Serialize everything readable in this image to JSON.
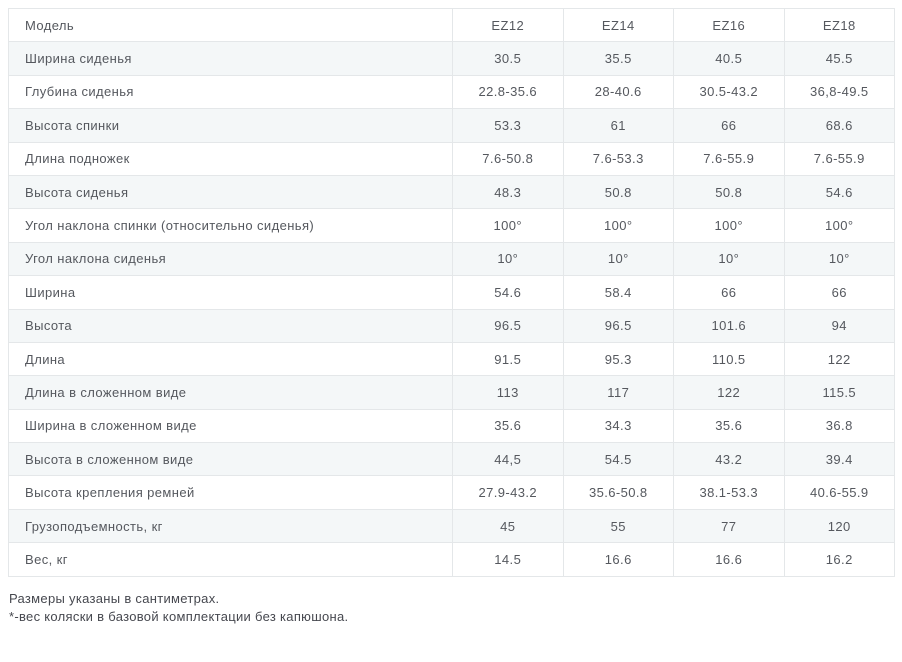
{
  "table": {
    "header": {
      "label": "Модель",
      "columns": [
        "EZ12",
        "EZ14",
        "EZ16",
        "EZ18"
      ]
    },
    "rows": [
      {
        "label": "Ширина сиденья",
        "values": [
          "30.5",
          "35.5",
          "40.5",
          "45.5"
        ]
      },
      {
        "label": "Глубина сиденья",
        "values": [
          "22.8-35.6",
          "28-40.6",
          "30.5-43.2",
          "36,8-49.5"
        ]
      },
      {
        "label": "Высота спинки",
        "values": [
          "53.3",
          "61",
          "66",
          "68.6"
        ]
      },
      {
        "label": "Длина подножек",
        "values": [
          "7.6-50.8",
          "7.6-53.3",
          "7.6-55.9",
          "7.6-55.9"
        ]
      },
      {
        "label": "Высота сиденья",
        "values": [
          "48.3",
          "50.8",
          "50.8",
          "54.6"
        ]
      },
      {
        "label": "Угол наклона спинки (относительно сиденья)",
        "values": [
          "100°",
          "100°",
          "100°",
          "100°"
        ]
      },
      {
        "label": "Угол наклона сиденья",
        "values": [
          "10°",
          "10°",
          "10°",
          "10°"
        ]
      },
      {
        "label": "Ширина",
        "values": [
          "54.6",
          "58.4",
          "66",
          "66"
        ]
      },
      {
        "label": "Высота",
        "values": [
          "96.5",
          "96.5",
          "101.6",
          "94"
        ]
      },
      {
        "label": "Длина",
        "values": [
          "91.5",
          "95.3",
          "110.5",
          "122"
        ]
      },
      {
        "label": "Длина в сложенном виде",
        "values": [
          "113",
          "117",
          "122",
          "115.5"
        ]
      },
      {
        "label": "Ширина в сложенном виде",
        "values": [
          "35.6",
          "34.3",
          "35.6",
          "36.8"
        ]
      },
      {
        "label": "Высота в сложенном виде",
        "values": [
          "44,5",
          "54.5",
          "43.2",
          "39.4"
        ]
      },
      {
        "label": "Высота крепления ремней",
        "values": [
          "27.9-43.2",
          "35.6-50.8",
          "38.1-53.3",
          "40.6-55.9"
        ]
      },
      {
        "label": "Грузоподъемность, кг",
        "values": [
          "45",
          "55",
          "77",
          "120"
        ]
      },
      {
        "label": "Вес, кг",
        "values": [
          "14.5",
          "16.6",
          "16.6",
          "16.2"
        ]
      }
    ]
  },
  "footnotes": {
    "line1": "Размеры указаны в сантиметрах.",
    "line2": "*-вес коляски в базовой комплектации без капюшона."
  },
  "colors": {
    "stripe": "#f4f7f8",
    "border": "#e4e7e9",
    "text": "#55585e"
  }
}
